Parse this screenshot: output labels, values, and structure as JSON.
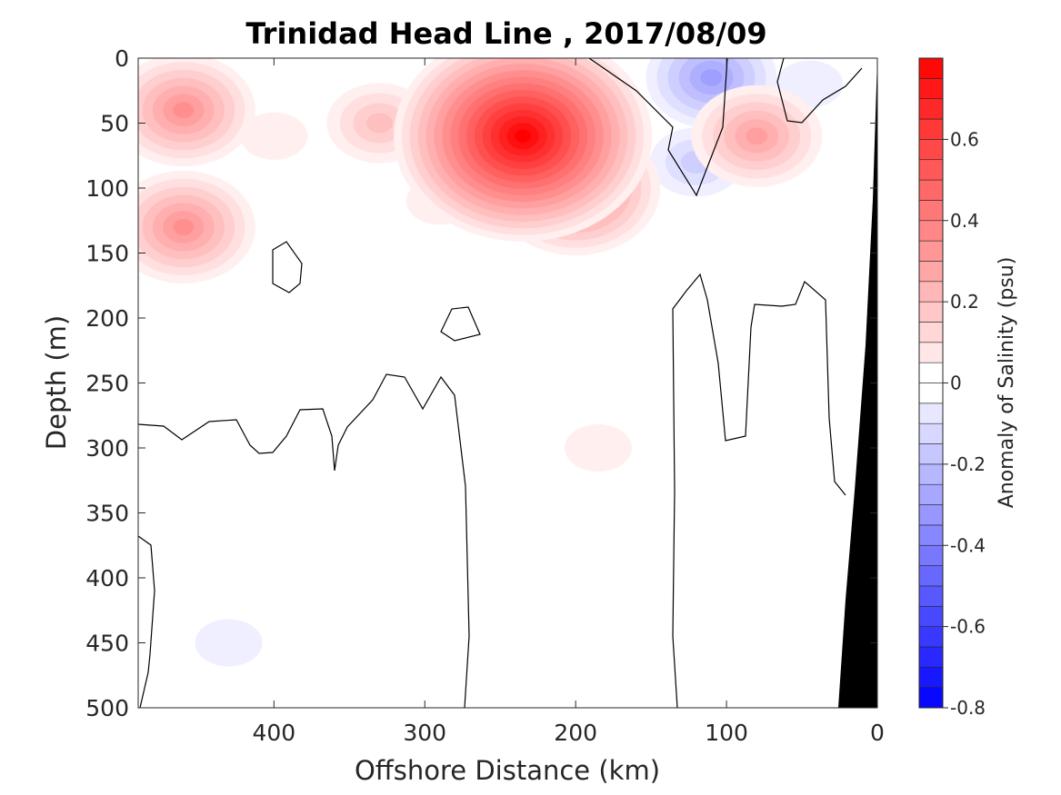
{
  "chart_data": {
    "type": "heatmap",
    "title": "Trinidad Head Line , 2017/08/09",
    "xlabel": "Offshore Distance (km)",
    "ylabel": "Depth (m)",
    "xlim": [
      490,
      0
    ],
    "x_reversed": true,
    "ylim": [
      0,
      500
    ],
    "y_reversed": true,
    "x_ticks": [
      400,
      300,
      200,
      100,
      0
    ],
    "y_ticks": [
      0,
      50,
      100,
      150,
      200,
      250,
      300,
      350,
      400,
      450,
      500
    ],
    "colorbar": {
      "label": "Anomaly of Salinity (psu)",
      "min": -0.8,
      "max": 0.8,
      "step": 0.05,
      "ticks": [
        -0.8,
        -0.6,
        -0.4,
        -0.2,
        0,
        0.2,
        0.4,
        0.6
      ],
      "negative_color": "#0000ff",
      "positive_color": "#ff0000",
      "neutral_color": "#ffffff"
    },
    "zero_contour_color": "#000000",
    "bathymetry_color": "#000000",
    "grid": false,
    "anomaly_features": [
      {
        "x": 460,
        "y": 40,
        "value": 0.35
      },
      {
        "x": 460,
        "y": 130,
        "value": 0.35
      },
      {
        "x": 400,
        "y": 60,
        "value": 0.05
      },
      {
        "x": 330,
        "y": 50,
        "value": 0.2
      },
      {
        "x": 290,
        "y": 110,
        "value": 0.05
      },
      {
        "x": 235,
        "y": 60,
        "value": 0.78
      },
      {
        "x": 200,
        "y": 100,
        "value": 0.45
      },
      {
        "x": 110,
        "y": 15,
        "value": -0.3
      },
      {
        "x": 120,
        "y": 80,
        "value": -0.15
      },
      {
        "x": 45,
        "y": 20,
        "value": -0.05
      },
      {
        "x": 80,
        "y": 60,
        "value": 0.3
      },
      {
        "x": 185,
        "y": 300,
        "value": 0.05
      },
      {
        "x": 430,
        "y": 450,
        "value": -0.05
      }
    ]
  }
}
